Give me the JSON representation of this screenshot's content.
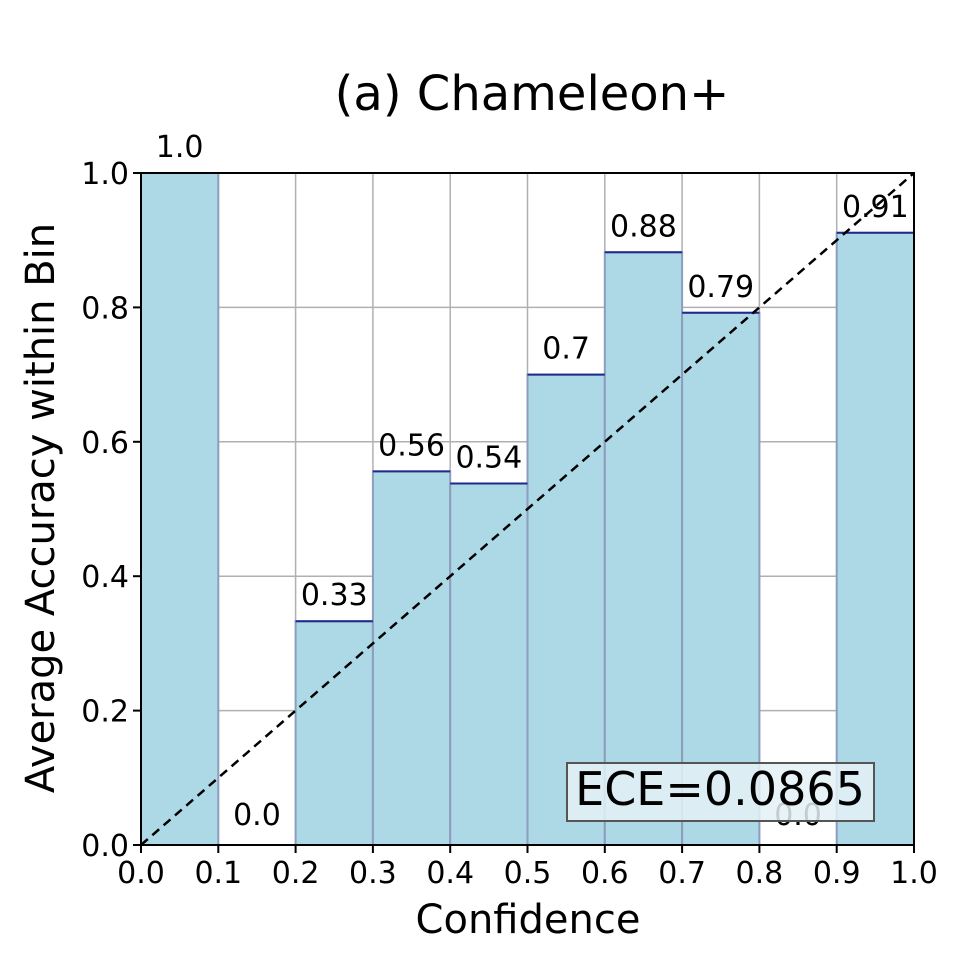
{
  "chart_data": {
    "type": "bar",
    "title": "(a) Chameleon+",
    "xlabel": "Confidence",
    "ylabel": "Average Accuracy within Bin",
    "xlim": [
      0.0,
      1.0
    ],
    "ylim": [
      0.0,
      1.0
    ],
    "x_ticks": [
      "0.0",
      "0.1",
      "0.2",
      "0.3",
      "0.4",
      "0.5",
      "0.6",
      "0.7",
      "0.8",
      "0.9",
      "1.0"
    ],
    "y_ticks": [
      "0.0",
      "0.2",
      "0.4",
      "0.6",
      "0.8",
      "1.0"
    ],
    "bins": [
      {
        "start": 0.0,
        "end": 0.1,
        "value": 1.0,
        "label": "1.0"
      },
      {
        "start": 0.1,
        "end": 0.2,
        "value": 0.0,
        "label": "0.0"
      },
      {
        "start": 0.2,
        "end": 0.3,
        "value": 0.333,
        "label": "0.33"
      },
      {
        "start": 0.3,
        "end": 0.4,
        "value": 0.556,
        "label": "0.56"
      },
      {
        "start": 0.4,
        "end": 0.5,
        "value": 0.538,
        "label": "0.54"
      },
      {
        "start": 0.5,
        "end": 0.6,
        "value": 0.7,
        "label": "0.7"
      },
      {
        "start": 0.6,
        "end": 0.7,
        "value": 0.882,
        "label": "0.88"
      },
      {
        "start": 0.7,
        "end": 0.8,
        "value": 0.792,
        "label": "0.79"
      },
      {
        "start": 0.8,
        "end": 0.9,
        "value": 0.0,
        "label": "0.0"
      },
      {
        "start": 0.9,
        "end": 1.0,
        "value": 0.911,
        "label": "0.91"
      }
    ],
    "reference_line": {
      "from": [
        0.0,
        0.0
      ],
      "to": [
        1.0,
        1.0
      ],
      "style": "dashed"
    },
    "annotation": "ECE=0.0865",
    "annotation_placement": "bottom-right",
    "grid": true,
    "colors": {
      "bar_fill": "#add8e6",
      "bar_edge": "#8c9dbd",
      "bar_top": "#1f2a8c",
      "grid": "#b0b0b0",
      "reference_line": "#000000",
      "annotation_bg": "#e4f1f6",
      "annotation_border": "#555555"
    }
  }
}
